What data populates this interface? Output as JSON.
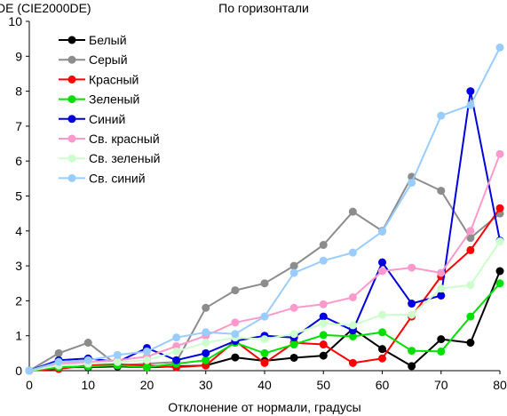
{
  "chart_data": {
    "type": "line",
    "title": "По горизонтали",
    "ylabel": "DE (CIE2000DE)",
    "xlabel": "Отклонение от нормали, градусы",
    "xlim": [
      0,
      80
    ],
    "ylim": [
      0,
      10
    ],
    "xticks": [
      0,
      10,
      20,
      30,
      40,
      50,
      60,
      70,
      80
    ],
    "yticks": [
      0,
      1,
      2,
      3,
      4,
      5,
      6,
      7,
      8,
      9,
      10
    ],
    "grid": false,
    "legend_position": "top-left",
    "x": [
      0,
      5,
      10,
      15,
      20,
      25,
      30,
      35,
      40,
      45,
      50,
      55,
      60,
      65,
      70,
      75,
      80
    ],
    "series": [
      {
        "name": "Белый",
        "color": "#000000",
        "values": [
          0,
          0.1,
          0.1,
          0.12,
          0.1,
          0.12,
          0.15,
          0.38,
          0.28,
          0.37,
          0.43,
          1.2,
          0.62,
          0.13,
          0.9,
          0.8,
          2.85
        ]
      },
      {
        "name": "Серый",
        "color": "#8c8c8c",
        "values": [
          0,
          0.5,
          0.8,
          0.15,
          0.2,
          0.25,
          1.8,
          2.3,
          2.5,
          3.0,
          3.6,
          4.55,
          4.0,
          5.55,
          5.15,
          3.8,
          4.5
        ]
      },
      {
        "name": "Красный",
        "color": "#ff0000",
        "values": [
          0,
          0.05,
          0.15,
          0.18,
          0.15,
          0.1,
          0.15,
          0.85,
          0.22,
          0.8,
          0.75,
          0.22,
          0.35,
          1.55,
          2.7,
          3.45,
          4.65
        ]
      },
      {
        "name": "Зеленый",
        "color": "#00e000",
        "values": [
          0,
          0.1,
          0.12,
          0.15,
          0.1,
          0.2,
          0.3,
          0.8,
          0.5,
          0.75,
          1.02,
          0.98,
          1.1,
          0.57,
          0.55,
          1.55,
          2.5
        ]
      },
      {
        "name": "Синий",
        "color": "#0000dd",
        "values": [
          0,
          0.3,
          0.35,
          0.25,
          0.65,
          0.3,
          0.5,
          0.85,
          1.0,
          0.95,
          1.55,
          1.15,
          3.1,
          1.92,
          2.15,
          8.0,
          3.72
        ]
      },
      {
        "name": "Св. красный",
        "color": "#ff99cc",
        "values": [
          0,
          0.2,
          0.25,
          0.3,
          0.4,
          0.7,
          1.0,
          1.38,
          1.55,
          1.8,
          1.9,
          2.1,
          2.85,
          2.95,
          2.8,
          4.0,
          6.2
        ]
      },
      {
        "name": "Св. зеленый",
        "color": "#ccffcc",
        "values": [
          0,
          0.15,
          0.2,
          0.25,
          0.3,
          0.55,
          0.8,
          0.95,
          0.9,
          1.05,
          1.35,
          1.3,
          1.6,
          1.6,
          2.35,
          2.45,
          3.7
        ]
      },
      {
        "name": "Св. синий",
        "color": "#99ccff",
        "values": [
          0,
          0.25,
          0.3,
          0.45,
          0.55,
          0.95,
          1.1,
          1.05,
          1.55,
          2.8,
          3.15,
          3.38,
          3.98,
          5.38,
          7.3,
          7.6,
          9.25
        ]
      }
    ]
  }
}
